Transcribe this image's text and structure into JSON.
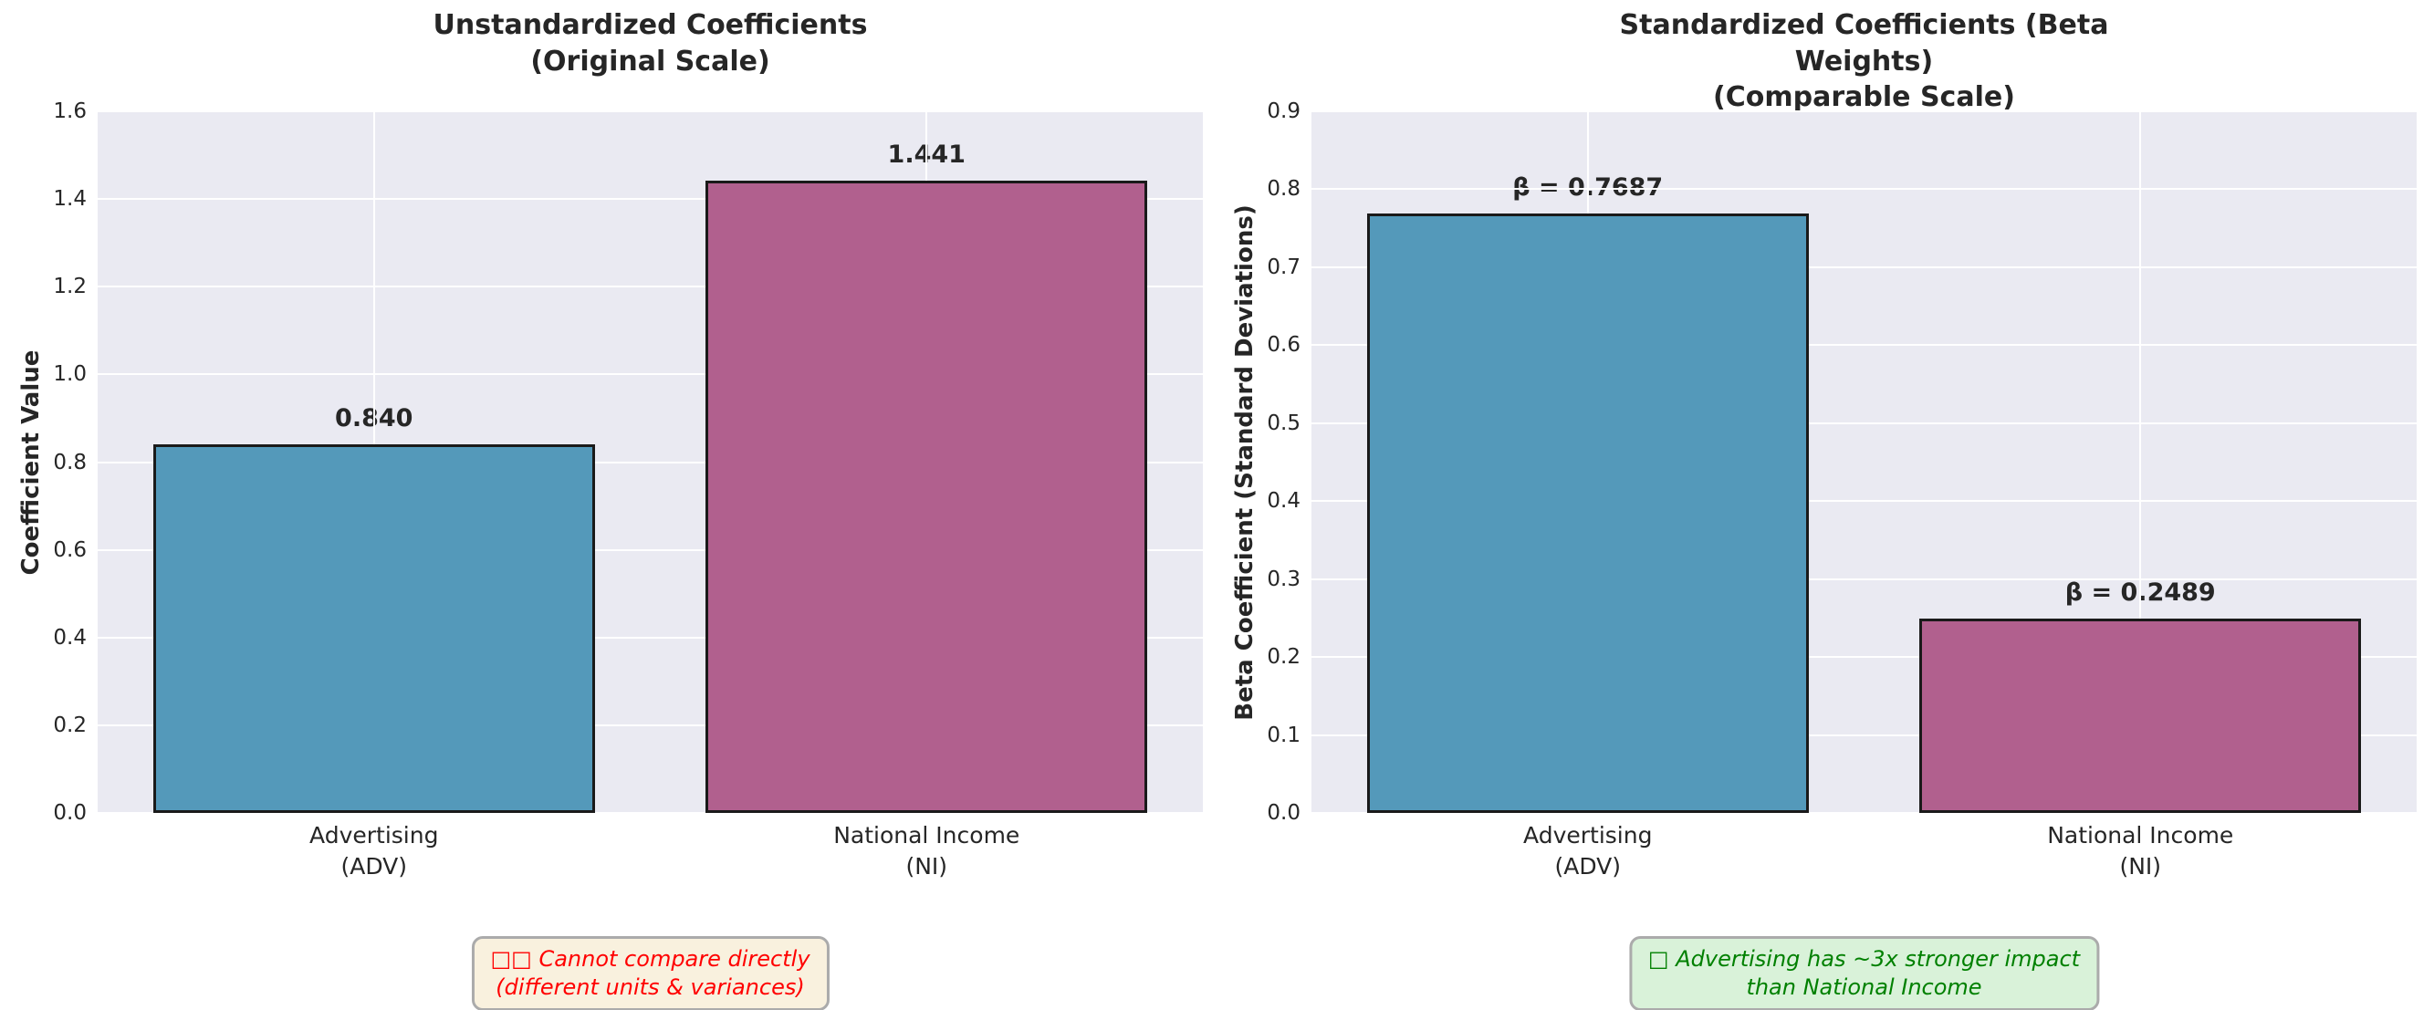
{
  "colors": {
    "plot_bg": "#eaeaf2",
    "grid": "#ffffff",
    "bar_edge": "#1a1a1a",
    "text": "#262626",
    "advertising_bar": "#5499ba",
    "national_income_bar": "#b1608e"
  },
  "chart_data": [
    {
      "type": "bar",
      "title": "Unstandardized Coefficients\n(Original Scale)",
      "ylabel": "Coefficient Value",
      "xlabel": "",
      "categories": [
        "Advertising\n(ADV)",
        "National Income\n(NI)"
      ],
      "values": [
        0.84,
        1.441
      ],
      "bar_labels": [
        "0.840",
        "1.441"
      ],
      "bar_colors": [
        "#5499ba",
        "#b1608e"
      ],
      "ylim": [
        0,
        1.6
      ],
      "yticks": [
        "0.0",
        "0.2",
        "0.4",
        "0.6",
        "0.8",
        "1.0",
        "1.2",
        "1.4",
        "1.6"
      ],
      "grid": "on",
      "legend": "none",
      "annotation": {
        "lines": [
          "□□ Cannot compare directly",
          "(different units & variances)"
        ],
        "text_color": "#ff0000",
        "bg_color": "#f9f1de",
        "border_color": "#ababab"
      }
    },
    {
      "type": "bar",
      "title": "Standardized Coefficients (Beta Weights)\n(Comparable Scale)",
      "ylabel": "Beta Coefficient (Standard Deviations)",
      "xlabel": "",
      "categories": [
        "Advertising\n(ADV)",
        "National Income\n(NI)"
      ],
      "values": [
        0.7687,
        0.2489
      ],
      "bar_labels": [
        "β = 0.7687",
        "β = 0.2489"
      ],
      "bar_colors": [
        "#5499ba",
        "#b1608e"
      ],
      "ylim": [
        0,
        0.9
      ],
      "yticks": [
        "0.0",
        "0.1",
        "0.2",
        "0.3",
        "0.4",
        "0.5",
        "0.6",
        "0.7",
        "0.8",
        "0.9"
      ],
      "grid": "on",
      "legend": "none",
      "annotation": {
        "lines": [
          "□ Advertising has ~3x stronger impact",
          "than National Income"
        ],
        "text_color": "#008000",
        "bg_color": "#d9f2d9",
        "border_color": "#ababab"
      }
    }
  ]
}
